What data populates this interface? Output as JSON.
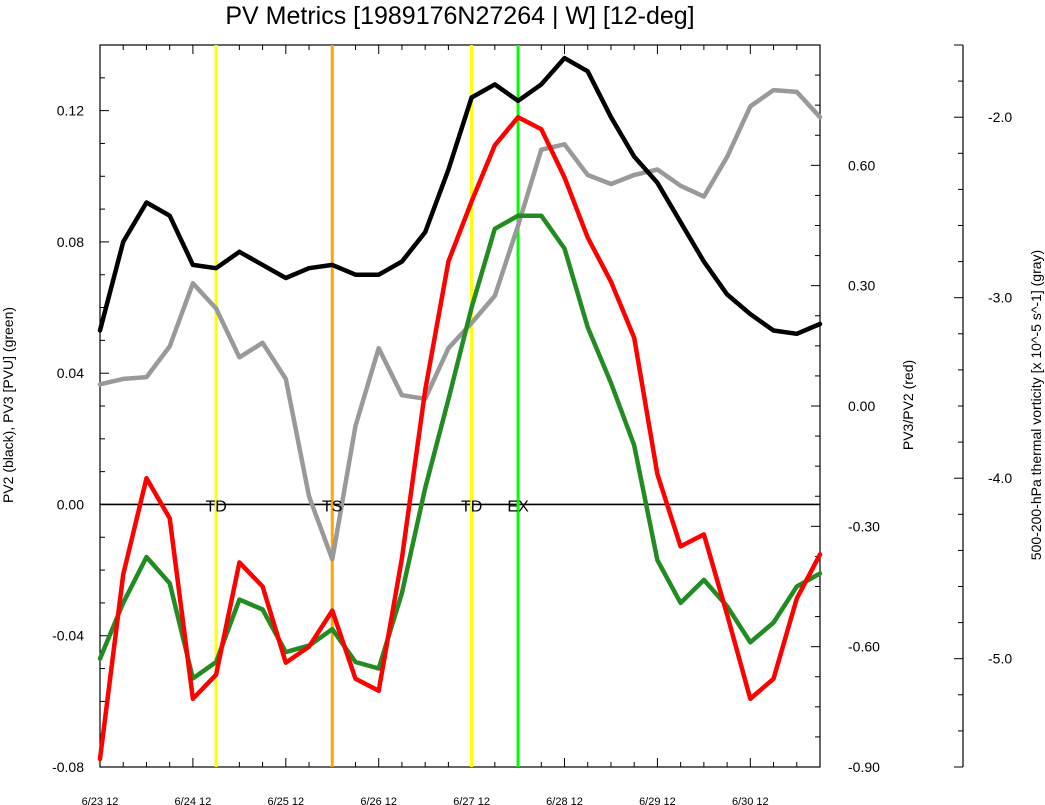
{
  "chart_data": {
    "type": "line",
    "title": "PV Metrics [1989176N27264 | W] [12-deg]",
    "xlabel": "",
    "ylabel_left": "PV2 (black), PV3 [PVU] (green)",
    "ylabel_right": "PV3/PV2 (red)",
    "ylabel_far_right": "500-200-hPa thermal vorticity [x 10^-5 s^-1] (gray)",
    "xlim": [
      0,
      31
    ],
    "x_ticks": [
      {
        "x": 0,
        "label": "6/23 12"
      },
      {
        "x": 4,
        "label": "6/24 12"
      },
      {
        "x": 8,
        "label": "6/25 12"
      },
      {
        "x": 12,
        "label": "6/26 12"
      },
      {
        "x": 16,
        "label": "6/27 12"
      },
      {
        "x": 20,
        "label": "6/28 12"
      },
      {
        "x": 24,
        "label": "6/29 12"
      },
      {
        "x": 28,
        "label": "6/30 12"
      }
    ],
    "left_axis": {
      "ylim": [
        -0.08,
        0.14
      ],
      "ticks": [
        {
          "v": -0.08,
          "label": "-0.08"
        },
        {
          "v": -0.04,
          "label": "-0.04"
        },
        {
          "v": 0.0,
          "label": "0.00"
        },
        {
          "v": 0.04,
          "label": "0.04"
        },
        {
          "v": 0.08,
          "label": "0.08"
        },
        {
          "v": 0.12,
          "label": "0.12"
        }
      ]
    },
    "right_axis": {
      "ylim": [
        -0.9,
        0.9
      ],
      "ticks": [
        {
          "v": -0.9,
          "label": "-0.90"
        },
        {
          "v": -0.6,
          "label": "-0.60"
        },
        {
          "v": -0.3,
          "label": "-0.30"
        },
        {
          "v": 0.0,
          "label": "0.00"
        },
        {
          "v": 0.3,
          "label": "0.30"
        },
        {
          "v": 0.6,
          "label": "0.60"
        }
      ]
    },
    "far_right_axis": {
      "ylim": [
        -5.6,
        -1.6
      ],
      "ticks": [
        {
          "v": -5.0,
          "label": "-5.0"
        },
        {
          "v": -4.0,
          "label": "-4.0"
        },
        {
          "v": -3.0,
          "label": "-3.0"
        },
        {
          "v": -2.0,
          "label": "-2.0"
        }
      ]
    },
    "x": [
      0,
      1,
      2,
      3,
      4,
      5,
      6,
      7,
      8,
      9,
      10,
      11,
      12,
      13,
      14,
      15,
      16,
      17,
      18,
      19,
      20,
      21,
      22,
      23,
      24,
      25,
      26,
      27,
      28,
      29,
      30,
      31
    ],
    "series": [
      {
        "key": "pv2",
        "axis": "left",
        "color": "#000000",
        "values": [
          0.053,
          0.08,
          0.092,
          0.088,
          0.073,
          0.072,
          0.077,
          0.073,
          0.069,
          0.072,
          0.073,
          0.07,
          0.07,
          0.074,
          0.083,
          0.102,
          0.124,
          0.128,
          0.123,
          0.128,
          0.136,
          0.132,
          0.118,
          0.106,
          0.098,
          0.086,
          0.074,
          0.064,
          0.058,
          0.053,
          0.052,
          0.055
        ]
      },
      {
        "key": "pv3",
        "axis": "left",
        "color": "#228b22",
        "values": [
          -0.047,
          -0.03,
          -0.016,
          -0.024,
          -0.053,
          -0.048,
          -0.029,
          -0.032,
          -0.045,
          -0.043,
          -0.038,
          -0.048,
          -0.05,
          -0.027,
          0.005,
          0.032,
          0.06,
          0.084,
          0.088,
          0.088,
          0.078,
          0.054,
          0.037,
          0.018,
          -0.017,
          -0.03,
          -0.023,
          -0.031,
          -0.042,
          -0.036,
          -0.025,
          -0.021
        ]
      },
      {
        "key": "ratio",
        "axis": "right",
        "color": "#ff0000",
        "values": [
          -0.88,
          -0.42,
          -0.18,
          -0.28,
          -0.73,
          -0.67,
          -0.39,
          -0.45,
          -0.64,
          -0.6,
          -0.51,
          -0.68,
          -0.71,
          -0.38,
          0.04,
          0.36,
          0.51,
          0.65,
          0.72,
          0.69,
          0.57,
          0.42,
          0.31,
          0.17,
          -0.17,
          -0.35,
          -0.32,
          -0.52,
          -0.73,
          -0.68,
          -0.48,
          -0.37
        ]
      },
      {
        "key": "thermal_vorticity",
        "axis": "far_right",
        "color": "#999999",
        "values": [
          -3.48,
          -3.45,
          -3.44,
          -3.27,
          -2.92,
          -3.06,
          -3.33,
          -3.25,
          -3.45,
          -4.1,
          -4.45,
          -3.71,
          -3.28,
          -3.54,
          -3.56,
          -3.28,
          -3.14,
          -2.99,
          -2.6,
          -2.18,
          -2.15,
          -2.32,
          -2.37,
          -2.32,
          -2.29,
          -2.38,
          -2.44,
          -2.22,
          -1.94,
          -1.85,
          -1.86,
          -2.0
        ]
      }
    ],
    "zero_line": {
      "axis": "left",
      "value": 0.0,
      "color": "#000000"
    },
    "event_lines": [
      {
        "x": 5,
        "label": "TD",
        "color": "#ffff00"
      },
      {
        "x": 10,
        "label": "TS",
        "color": "#ffa500"
      },
      {
        "x": 16,
        "label": "TD",
        "color": "#ffff00"
      },
      {
        "x": 18,
        "label": "EX",
        "color": "#00ff00"
      }
    ],
    "grid": false,
    "legend": "none"
  }
}
